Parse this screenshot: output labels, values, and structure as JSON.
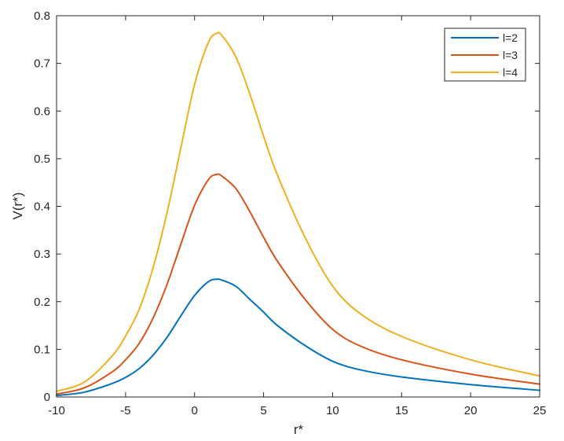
{
  "chart_data": {
    "type": "line",
    "title": "",
    "xlabel": "r*",
    "ylabel": "V(r*)",
    "xlim": [
      -10,
      25
    ],
    "ylim": [
      0,
      0.8
    ],
    "xticks": [
      -10,
      -5,
      0,
      5,
      10,
      15,
      20,
      25
    ],
    "yticks": [
      0,
      0.1,
      0.2,
      0.3,
      0.4,
      0.5,
      0.6,
      0.7,
      0.8
    ],
    "grid": false,
    "legend": "top-right",
    "x": [
      -10,
      -8,
      -6,
      -5,
      -4,
      -3,
      -2,
      -1,
      0,
      1,
      1.6,
      2,
      3,
      4,
      5,
      6,
      8,
      10,
      12,
      15,
      20,
      25
    ],
    "series": [
      {
        "name": "l=2",
        "color": "#0072BD",
        "values": [
          0.003,
          0.01,
          0.028,
          0.041,
          0.06,
          0.088,
          0.125,
          0.17,
          0.213,
          0.242,
          0.247,
          0.245,
          0.232,
          0.205,
          0.178,
          0.15,
          0.108,
          0.075,
          0.057,
          0.042,
          0.026,
          0.014
        ]
      },
      {
        "name": "l=3",
        "color": "#D95319",
        "values": [
          0.006,
          0.019,
          0.052,
          0.078,
          0.113,
          0.166,
          0.236,
          0.32,
          0.402,
          0.456,
          0.467,
          0.463,
          0.437,
          0.389,
          0.335,
          0.285,
          0.205,
          0.142,
          0.107,
          0.078,
          0.048,
          0.027
        ]
      },
      {
        "name": "l=4",
        "color": "#EDB120",
        "values": [
          0.012,
          0.031,
          0.085,
          0.128,
          0.185,
          0.272,
          0.386,
          0.522,
          0.656,
          0.744,
          0.763,
          0.758,
          0.713,
          0.636,
          0.547,
          0.466,
          0.335,
          0.233,
          0.175,
          0.127,
          0.078,
          0.044
        ]
      }
    ]
  }
}
